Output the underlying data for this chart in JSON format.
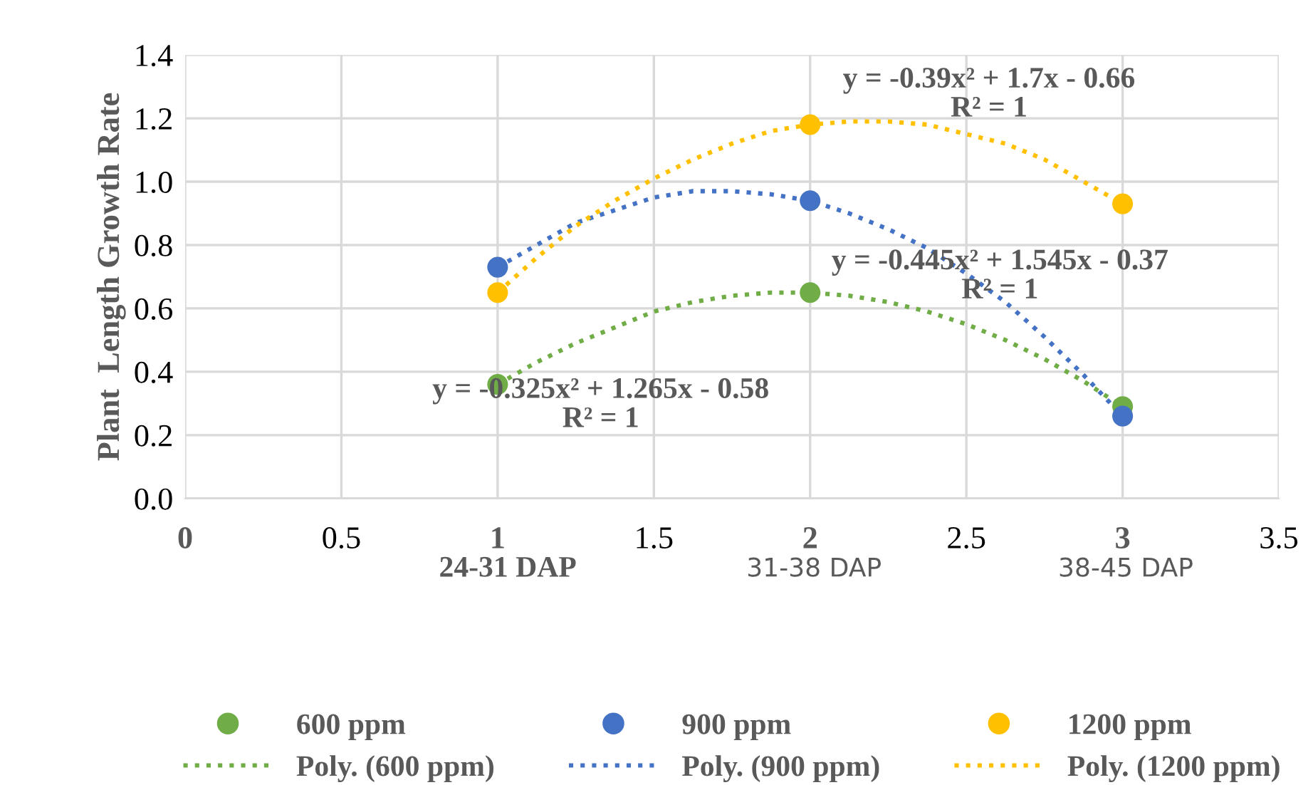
{
  "chart_data": {
    "type": "scatter",
    "ylabel": "Plant  Length Growth Rate",
    "x": [
      1,
      2,
      3
    ],
    "series": [
      {
        "name": "600 ppm",
        "color": "#70ad47",
        "values": [
          0.36,
          0.65,
          0.29
        ]
      },
      {
        "name": "Poly. (600 ppm)",
        "type": "line",
        "line_style": "dotted",
        "marker": "none",
        "color": "#70ad47",
        "x": [
          1,
          1.125,
          1.25,
          1.375,
          1.5,
          1.625,
          1.75,
          1.875,
          2,
          2.125,
          2.25,
          2.375,
          2.5,
          2.625,
          2.75,
          2.875,
          3
        ],
        "values": [
          0.36,
          0.43,
          0.49,
          0.54,
          0.59,
          0.62,
          0.64,
          0.65,
          0.65,
          0.64,
          0.62,
          0.59,
          0.55,
          0.5,
          0.44,
          0.37,
          0.29
        ]
      },
      {
        "name": "900 ppm",
        "color": "#4472c4",
        "values": [
          0.73,
          0.94,
          0.26
        ]
      },
      {
        "name": "Poly. (900 ppm)",
        "type": "line",
        "line_style": "dotted",
        "marker": "none",
        "color": "#4472c4",
        "x": [
          1,
          1.125,
          1.25,
          1.375,
          1.5,
          1.625,
          1.75,
          1.875,
          2,
          2.125,
          2.25,
          2.375,
          2.5,
          2.625,
          2.75,
          2.875,
          3
        ],
        "values": [
          0.73,
          0.8,
          0.87,
          0.91,
          0.95,
          0.97,
          0.97,
          0.96,
          0.94,
          0.9,
          0.85,
          0.79,
          0.71,
          0.62,
          0.51,
          0.39,
          0.26
        ]
      },
      {
        "name": "1200 ppm",
        "color": "#ffc000",
        "values": [
          0.65,
          1.18,
          0.93
        ]
      },
      {
        "name": "Poly. (1200 ppm)",
        "type": "line",
        "line_style": "dotted",
        "marker": "none",
        "color": "#ffc000",
        "x": [
          1,
          1.125,
          1.25,
          1.375,
          1.5,
          1.625,
          1.75,
          1.875,
          2,
          2.125,
          2.25,
          2.375,
          2.5,
          2.625,
          2.75,
          2.875,
          3
        ],
        "values": [
          0.65,
          0.76,
          0.86,
          0.94,
          1.01,
          1.07,
          1.12,
          1.16,
          1.18,
          1.19,
          1.19,
          1.18,
          1.15,
          1.12,
          1.07,
          1.0,
          0.93
        ]
      }
    ],
    "marker": "circle",
    "xlim": [
      0,
      3.5
    ],
    "xticks": [
      0,
      0.5,
      1,
      1.5,
      2,
      2.5,
      3,
      3.5
    ],
    "ylim": [
      0,
      1.4
    ],
    "yticks": [
      {
        "value": 0,
        "label": "0.0"
      },
      {
        "value": 0.2,
        "label": "0.2"
      },
      {
        "value": 0.4,
        "label": "0.4"
      },
      {
        "value": 0.6,
        "label": "0.6"
      },
      {
        "value": 0.8,
        "label": "0.8"
      },
      {
        "value": 1.0,
        "label": "1.0"
      },
      {
        "value": 1.2,
        "label": "1.2"
      },
      {
        "value": 1.4,
        "label": "1.4"
      }
    ],
    "grid": true,
    "legend": "bottom",
    "annotations": [
      "y = -0.39x² + 1.7x - 0.66\nR² = 1",
      "y = -0.445x² + 1.545x - 0.37\nR² = 1",
      "y = -0.325x² + 1.265x - 0.58\nR² = 1",
      "24-31 DAP",
      "31-38 DAP",
      "38-45 DAP"
    ]
  }
}
